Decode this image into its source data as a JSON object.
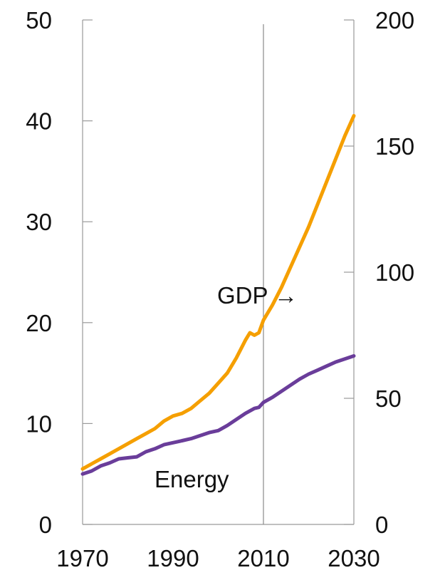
{
  "chart_data": {
    "type": "line",
    "title": "",
    "xlabel": "",
    "ylabel": "",
    "xlim": [
      1970,
      2030
    ],
    "ylim_left": [
      0,
      50
    ],
    "ylim_right": [
      0,
      200
    ],
    "x_ticks": [
      "1970",
      "1990",
      "2010",
      "2030"
    ],
    "y_left_ticks": [
      "0",
      "10",
      "20",
      "30",
      "40",
      "50"
    ],
    "y_right_ticks": [
      "0",
      "50",
      "100",
      "150",
      "200"
    ],
    "reference_line_x": 2010,
    "grid": false,
    "series": [
      {
        "name": "Energy",
        "axis": "left",
        "color": "#6a3d9a",
        "x": [
          1970,
          1972,
          1974,
          1976,
          1978,
          1980,
          1982,
          1984,
          1986,
          1988,
          1990,
          1992,
          1994,
          1996,
          1998,
          2000,
          2002,
          2004,
          2006,
          2008,
          2009,
          2010,
          2012,
          2014,
          2016,
          2018,
          2020,
          2022,
          2024,
          2026,
          2028,
          2030
        ],
        "values": [
          5.0,
          5.3,
          5.8,
          6.1,
          6.5,
          6.6,
          6.7,
          7.2,
          7.5,
          7.9,
          8.1,
          8.3,
          8.5,
          8.8,
          9.1,
          9.3,
          9.8,
          10.4,
          11.0,
          11.5,
          11.6,
          12.1,
          12.6,
          13.2,
          13.8,
          14.4,
          14.9,
          15.3,
          15.7,
          16.1,
          16.4,
          16.7
        ]
      },
      {
        "name": "GDP",
        "axis": "right",
        "color": "#f59f00",
        "x": [
          1970,
          1972,
          1974,
          1976,
          1978,
          1980,
          1982,
          1984,
          1986,
          1988,
          1990,
          1992,
          1994,
          1996,
          1998,
          2000,
          2002,
          2004,
          2006,
          2007,
          2008,
          2009,
          2010,
          2012,
          2014,
          2016,
          2018,
          2020,
          2022,
          2024,
          2026,
          2028,
          2030
        ],
        "values": [
          22,
          24,
          26,
          28,
          30,
          32,
          34,
          36,
          38,
          41,
          43,
          44,
          46,
          49,
          52,
          56,
          60,
          66,
          73,
          76,
          75,
          76,
          81,
          87,
          94,
          102,
          110,
          118,
          127,
          136,
          145,
          154,
          162
        ]
      }
    ],
    "annotations": [
      {
        "text": "GDP →",
        "series": "GDP"
      },
      {
        "text": "Energy",
        "series": "Energy"
      }
    ]
  }
}
